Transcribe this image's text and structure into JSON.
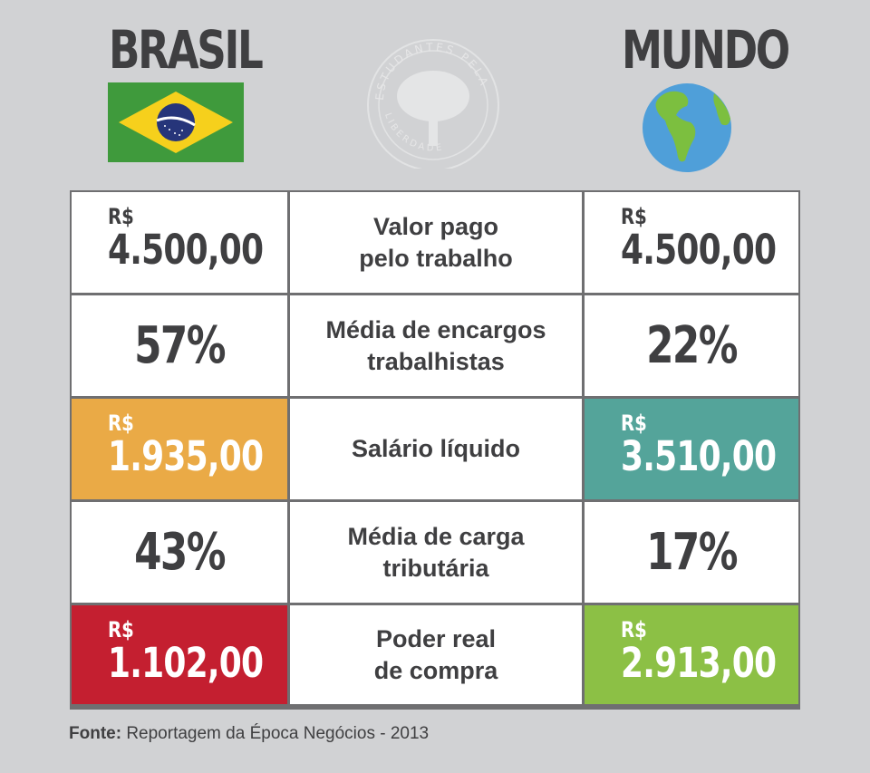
{
  "header": {
    "left_title": "BRASIL",
    "right_title": "MUNDO",
    "watermark_top": "ESTUDANTES PELA",
    "watermark_bottom": "LIBERDADE"
  },
  "colors": {
    "background": "#d1d2d4",
    "orange": "#eaaa46",
    "teal": "#54a49a",
    "red": "#c41f30",
    "green": "#8cc045"
  },
  "rows": [
    {
      "label_line1": "Valor pago",
      "label_line2": "pelo trabalho",
      "brasil_currency": "R$",
      "brasil_value": "4.500,00",
      "mundo_currency": "R$",
      "mundo_value": "4.500,00"
    },
    {
      "label_line1": "Média de encargos",
      "label_line2": "trabalhistas",
      "brasil_value": "57%",
      "mundo_value": "22%"
    },
    {
      "label_line1": "Salário líquido",
      "brasil_currency": "R$",
      "brasil_value": "1.935,00",
      "mundo_currency": "R$",
      "mundo_value": "3.510,00"
    },
    {
      "label_line1": "Média de carga",
      "label_line2": "tributária",
      "brasil_value": "43%",
      "mundo_value": "17%"
    },
    {
      "label_line1": "Poder real",
      "label_line2": "de compra",
      "brasil_currency": "R$",
      "brasil_value": "1.102,00",
      "mundo_currency": "R$",
      "mundo_value": "2.913,00"
    }
  ],
  "source": {
    "prefix": "Fonte:",
    "text": "Reportagem da Época Negócios - 2013"
  }
}
